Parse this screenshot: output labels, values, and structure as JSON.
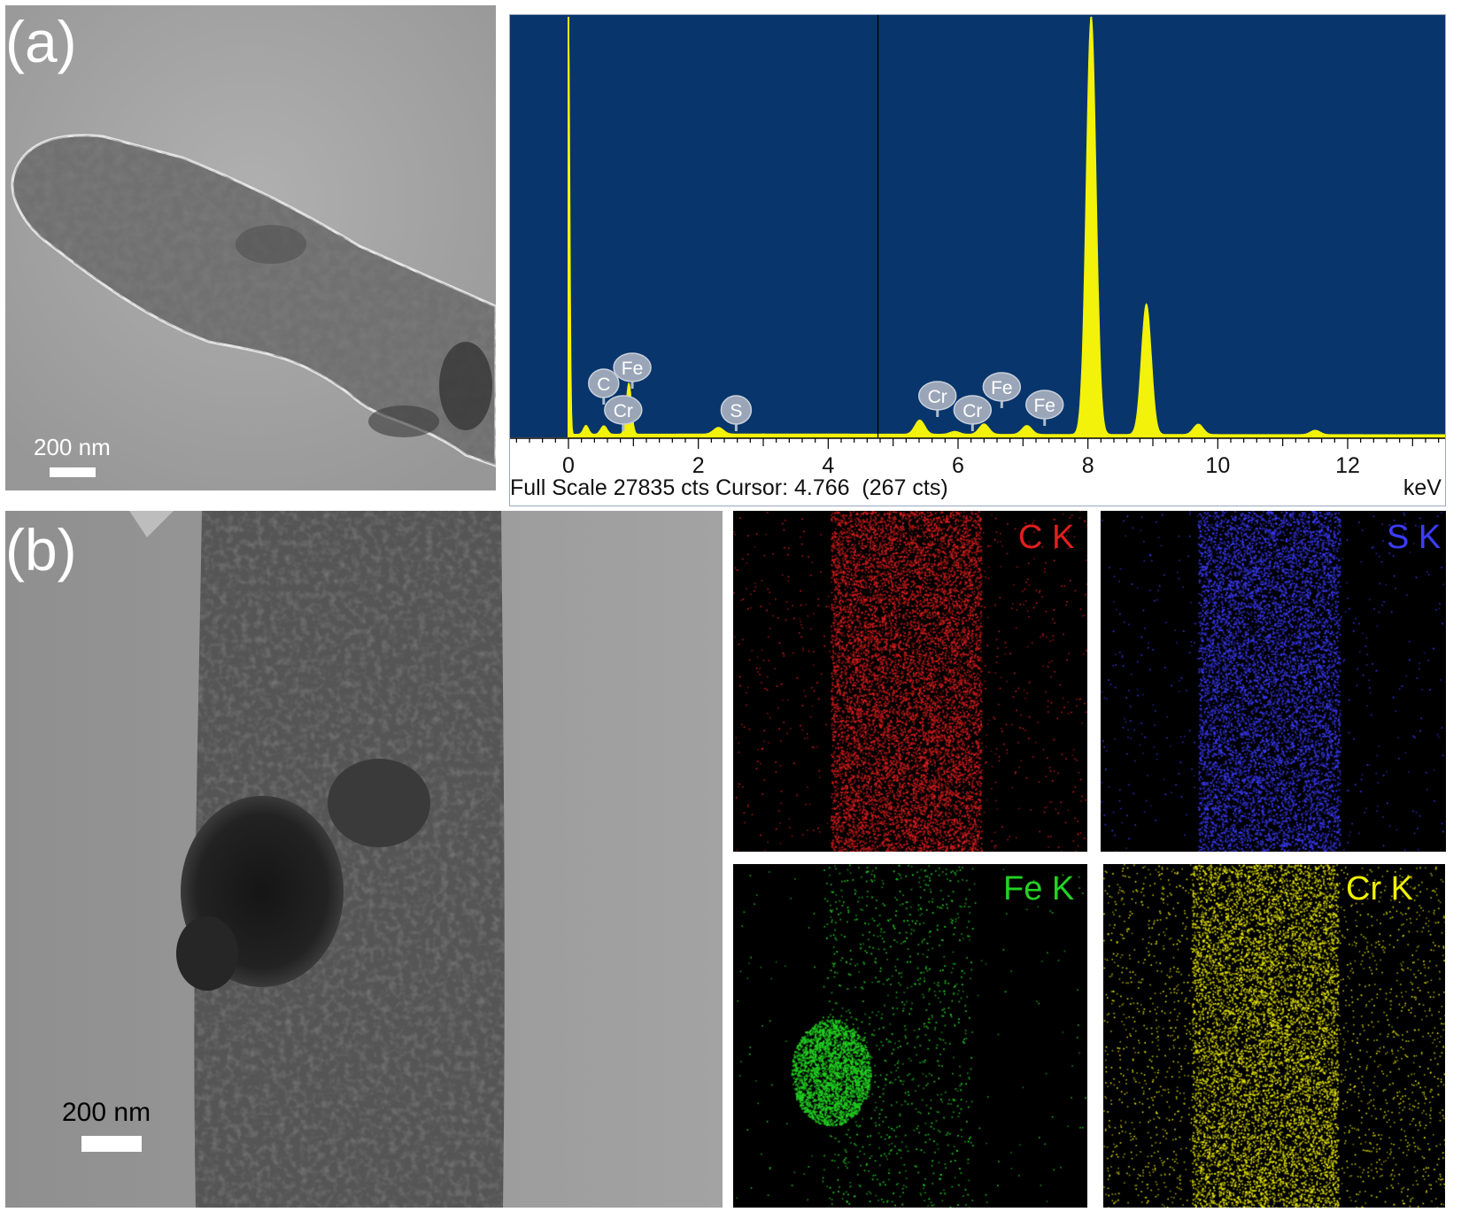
{
  "panel_a": {
    "label": "(a)",
    "scale_bar": "200 nm"
  },
  "panel_b": {
    "label": "(b)",
    "scale_bar": "200 nm"
  },
  "spectrum": {
    "footer": "Full Scale 27835 cts Cursor: 4.766  (267 cts)",
    "unit": "keV",
    "background": "#08356b",
    "trace_color": "#f2f20a",
    "cursor_kev": 4.766,
    "x_ticks": [
      "0",
      "2",
      "4",
      "6",
      "8",
      "10",
      "12"
    ],
    "peak_markers": [
      "C",
      "Fe",
      "Cr",
      "S",
      "Cr",
      "Cr",
      "Fe",
      "Fe"
    ]
  },
  "chart_data": {
    "type": "line",
    "xlabel": "keV",
    "xlim": [
      -0.9,
      13.5
    ],
    "ylim": [
      0,
      27835
    ],
    "x_ticks": [
      0,
      2,
      4,
      6,
      8,
      10,
      12
    ],
    "series": [
      {
        "x": [
          0.0,
          0.27,
          0.52,
          0.57,
          0.93,
          2.31,
          5.41,
          5.95,
          6.4,
          7.06,
          8.05,
          8.9,
          9.7,
          11.5
        ],
        "y": [
          27835,
          750,
          500,
          500,
          3550,
          600,
          1100,
          350,
          850,
          750,
          27835,
          8800,
          850,
          450
        ]
      }
    ],
    "annotations": [
      {
        "text": "C",
        "x": 0.27
      },
      {
        "text": "Fe",
        "x": 0.71
      },
      {
        "text": "Cr",
        "x": 0.57
      },
      {
        "text": "S",
        "x": 2.31
      },
      {
        "text": "Cr",
        "x": 5.41
      },
      {
        "text": "Cr",
        "x": 5.95
      },
      {
        "text": "Fe",
        "x": 6.4
      },
      {
        "text": "Fe",
        "x": 7.06
      }
    ]
  },
  "maps": [
    {
      "label": "C K",
      "color": "#e21e1e"
    },
    {
      "label": "S K",
      "color": "#3c3cff"
    },
    {
      "label": "Fe K",
      "color": "#22d322"
    },
    {
      "label": "Cr K",
      "color": "#f0f000"
    }
  ]
}
